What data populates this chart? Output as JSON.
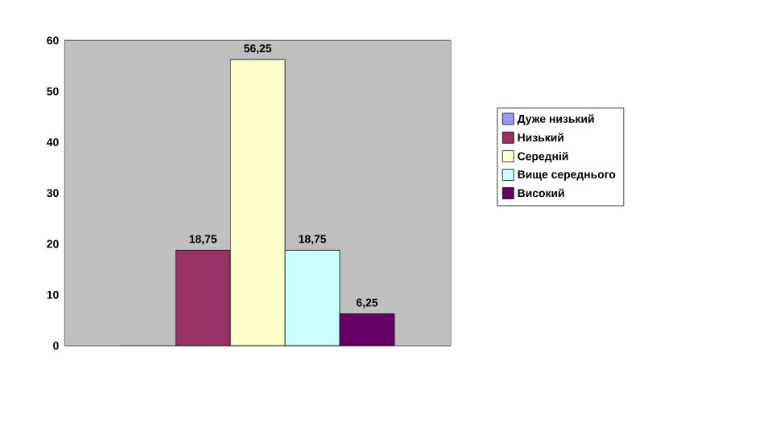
{
  "chart_data": {
    "type": "bar",
    "categories": [
      null
    ],
    "series": [
      {
        "name": "Дуже низький",
        "color": "#9999ff",
        "values": [
          0
        ],
        "value_labels": [
          null
        ]
      },
      {
        "name": "Низький",
        "color": "#993366",
        "values": [
          18.75
        ],
        "value_labels": [
          "18,75"
        ]
      },
      {
        "name": "Середній",
        "color": "#ffffcc",
        "values": [
          56.25
        ],
        "value_labels": [
          "56,25"
        ]
      },
      {
        "name": "Вище середнього",
        "color": "#ccffff",
        "values": [
          18.75
        ],
        "value_labels": [
          "18,75"
        ]
      },
      {
        "name": "Високий",
        "color": "#660066",
        "values": [
          6.25
        ],
        "value_labels": [
          "6,25"
        ]
      }
    ],
    "ylim": [
      0,
      60
    ],
    "yticks": [
      0,
      10,
      20,
      30,
      40,
      50,
      60
    ],
    "grid": "y",
    "legend": "right"
  }
}
